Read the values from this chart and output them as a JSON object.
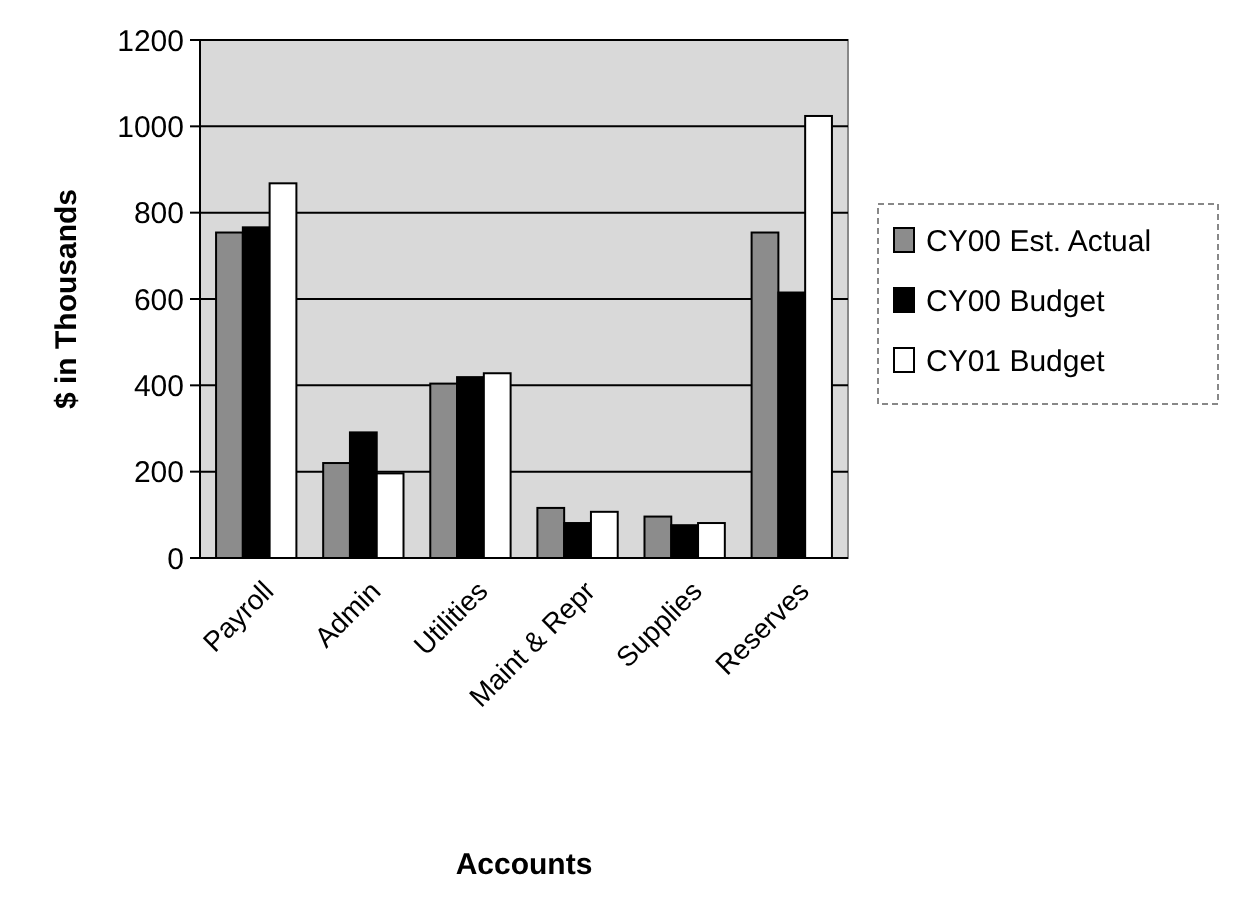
{
  "chart_data": {
    "type": "bar",
    "xlabel": "Accounts",
    "ylabel": "$ in Thousands",
    "categories": [
      "Payroll",
      "Admin",
      "Utilities",
      "Maint & Repr",
      "Supplies",
      "Reserves"
    ],
    "series": [
      {
        "name": "CY00 Est. Actual",
        "color": "#8c8c8c",
        "values": [
          754,
          220,
          404,
          116,
          96,
          754
        ]
      },
      {
        "name": "CY00 Budget",
        "color": "#000000",
        "values": [
          766,
          291,
          419,
          81,
          76,
          615
        ]
      },
      {
        "name": "CY01 Budget",
        "color": "#ffffff",
        "values": [
          868,
          196,
          428,
          107,
          81,
          1024
        ]
      }
    ],
    "ylim": [
      0,
      1200
    ],
    "yticks": [
      0,
      200,
      400,
      600,
      800,
      1000,
      1200
    ],
    "grid": "y",
    "legend": "right"
  }
}
